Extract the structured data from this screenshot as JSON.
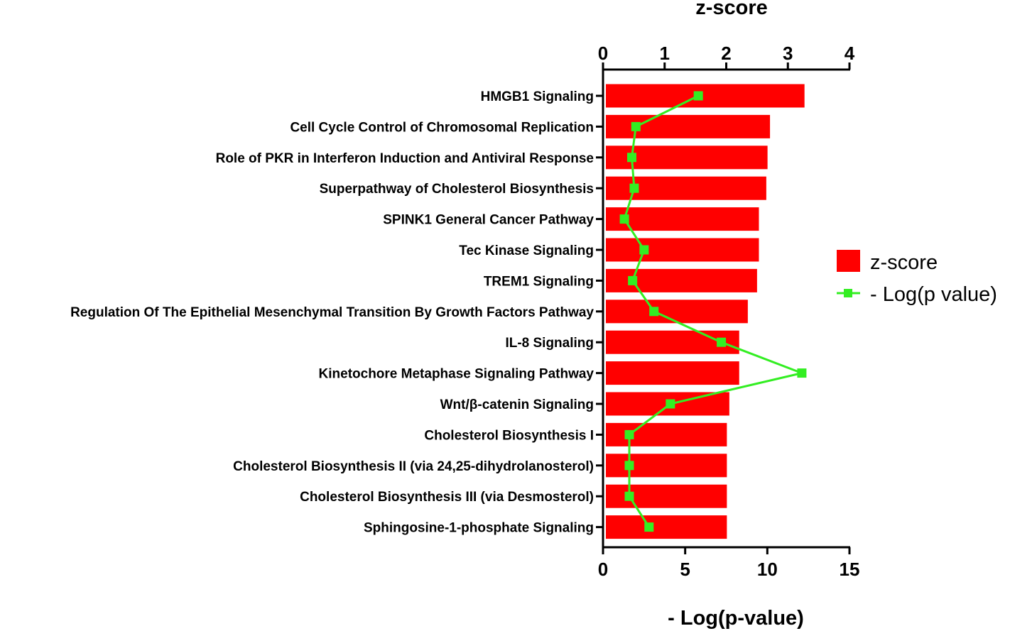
{
  "chart_data": {
    "type": "bar",
    "orientation": "horizontal",
    "categories": [
      "HMGB1 Signaling",
      "Cell Cycle Control of Chromosomal Replication",
      "Role of PKR in Interferon Induction and Antiviral Response",
      "Superpathway of Cholesterol Biosynthesis",
      "SPINK1 General Cancer Pathway",
      "Tec Kinase Signaling",
      "TREM1 Signaling",
      "Regulation Of The Epithelial Mesenchymal Transition By Growth Factors Pathway",
      "IL-8 Signaling",
      "Kinetochore Metaphase Signaling Pathway",
      "Wnt/β-catenin Signaling",
      "Cholesterol Biosynthesis I",
      "Cholesterol Biosynthesis II (via 24,25-dihydrolanosterol)",
      "Cholesterol Biosynthesis III (via Desmosterol)",
      "Sphingosine-1-phosphate Signaling"
    ],
    "series": [
      {
        "name": "z-score",
        "type": "bar",
        "axis": "top",
        "color": "#ff0000",
        "values": [
          3.27,
          2.71,
          2.67,
          2.65,
          2.53,
          2.53,
          2.5,
          2.35,
          2.21,
          2.21,
          2.05,
          2.01,
          2.01,
          2.01,
          2.01
        ]
      },
      {
        "name": "- Log(p value)",
        "type": "line",
        "marker": "square",
        "axis": "bottom",
        "color": "#33ee22",
        "values": [
          5.8,
          2.0,
          1.75,
          1.9,
          1.3,
          2.5,
          1.8,
          3.1,
          7.2,
          12.1,
          4.1,
          1.6,
          1.6,
          1.6,
          2.8
        ]
      }
    ],
    "top_axis": {
      "label": "z-score",
      "range": [
        0,
        4
      ],
      "ticks": [
        "0",
        "1",
        "2",
        "3",
        "4"
      ]
    },
    "bottom_axis": {
      "label": "- Log(p-value)",
      "range": [
        0,
        15
      ],
      "ticks": [
        "0",
        "5",
        "10",
        "15"
      ]
    },
    "legend": {
      "position": "right",
      "items": [
        {
          "label": "z-score",
          "symbol": "bar",
          "color": "#ff0000"
        },
        {
          "label": "- Log(p value)",
          "symbol": "line-square",
          "color": "#33ee22"
        }
      ]
    }
  }
}
